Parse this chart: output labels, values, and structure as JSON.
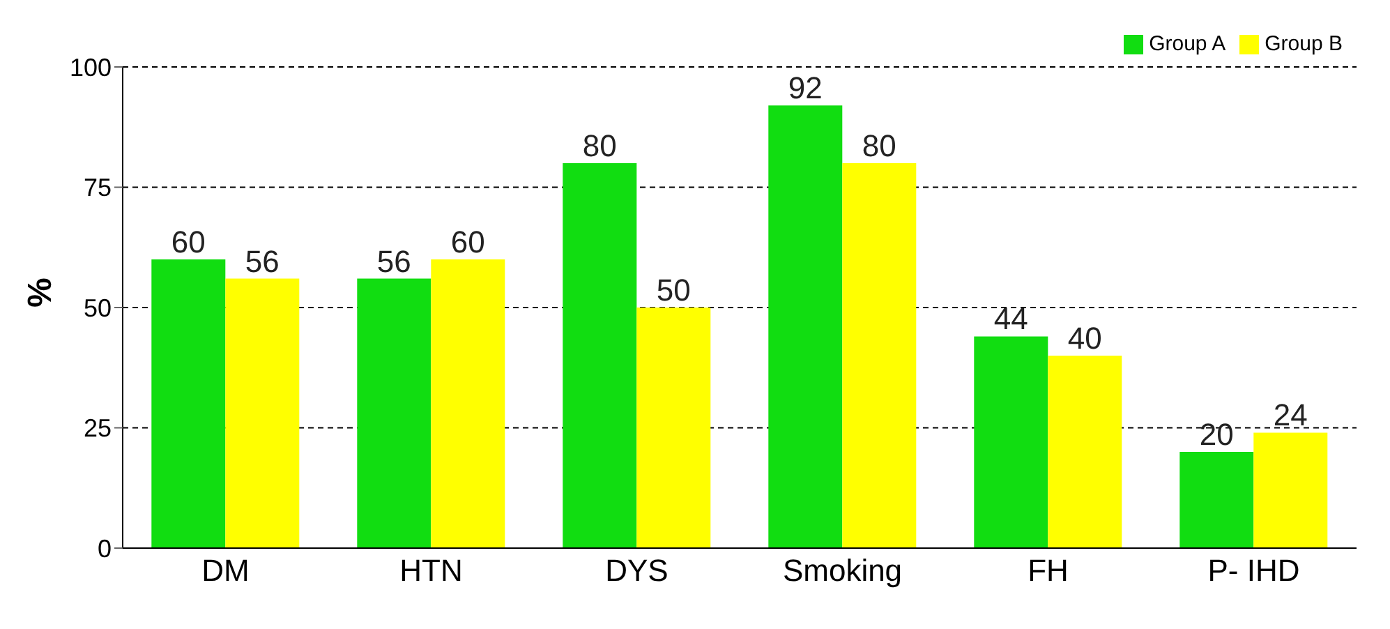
{
  "chart_data": {
    "type": "bar",
    "ylabel": "%",
    "categories": [
      "DM",
      "HTN",
      "DYS",
      "Smoking",
      "FH",
      "P- IHD"
    ],
    "series": [
      {
        "name": "Group A",
        "color": "#11dd11",
        "values": [
          60,
          56,
          80,
          92,
          44,
          20
        ]
      },
      {
        "name": "Group B",
        "color": "#ffff00",
        "values": [
          56,
          60,
          50,
          80,
          40,
          24
        ]
      }
    ],
    "ylim": [
      0,
      100
    ],
    "yticks": [
      0,
      25,
      50,
      75,
      100
    ],
    "grid": "y",
    "legend": "top right",
    "data_labels": true
  }
}
